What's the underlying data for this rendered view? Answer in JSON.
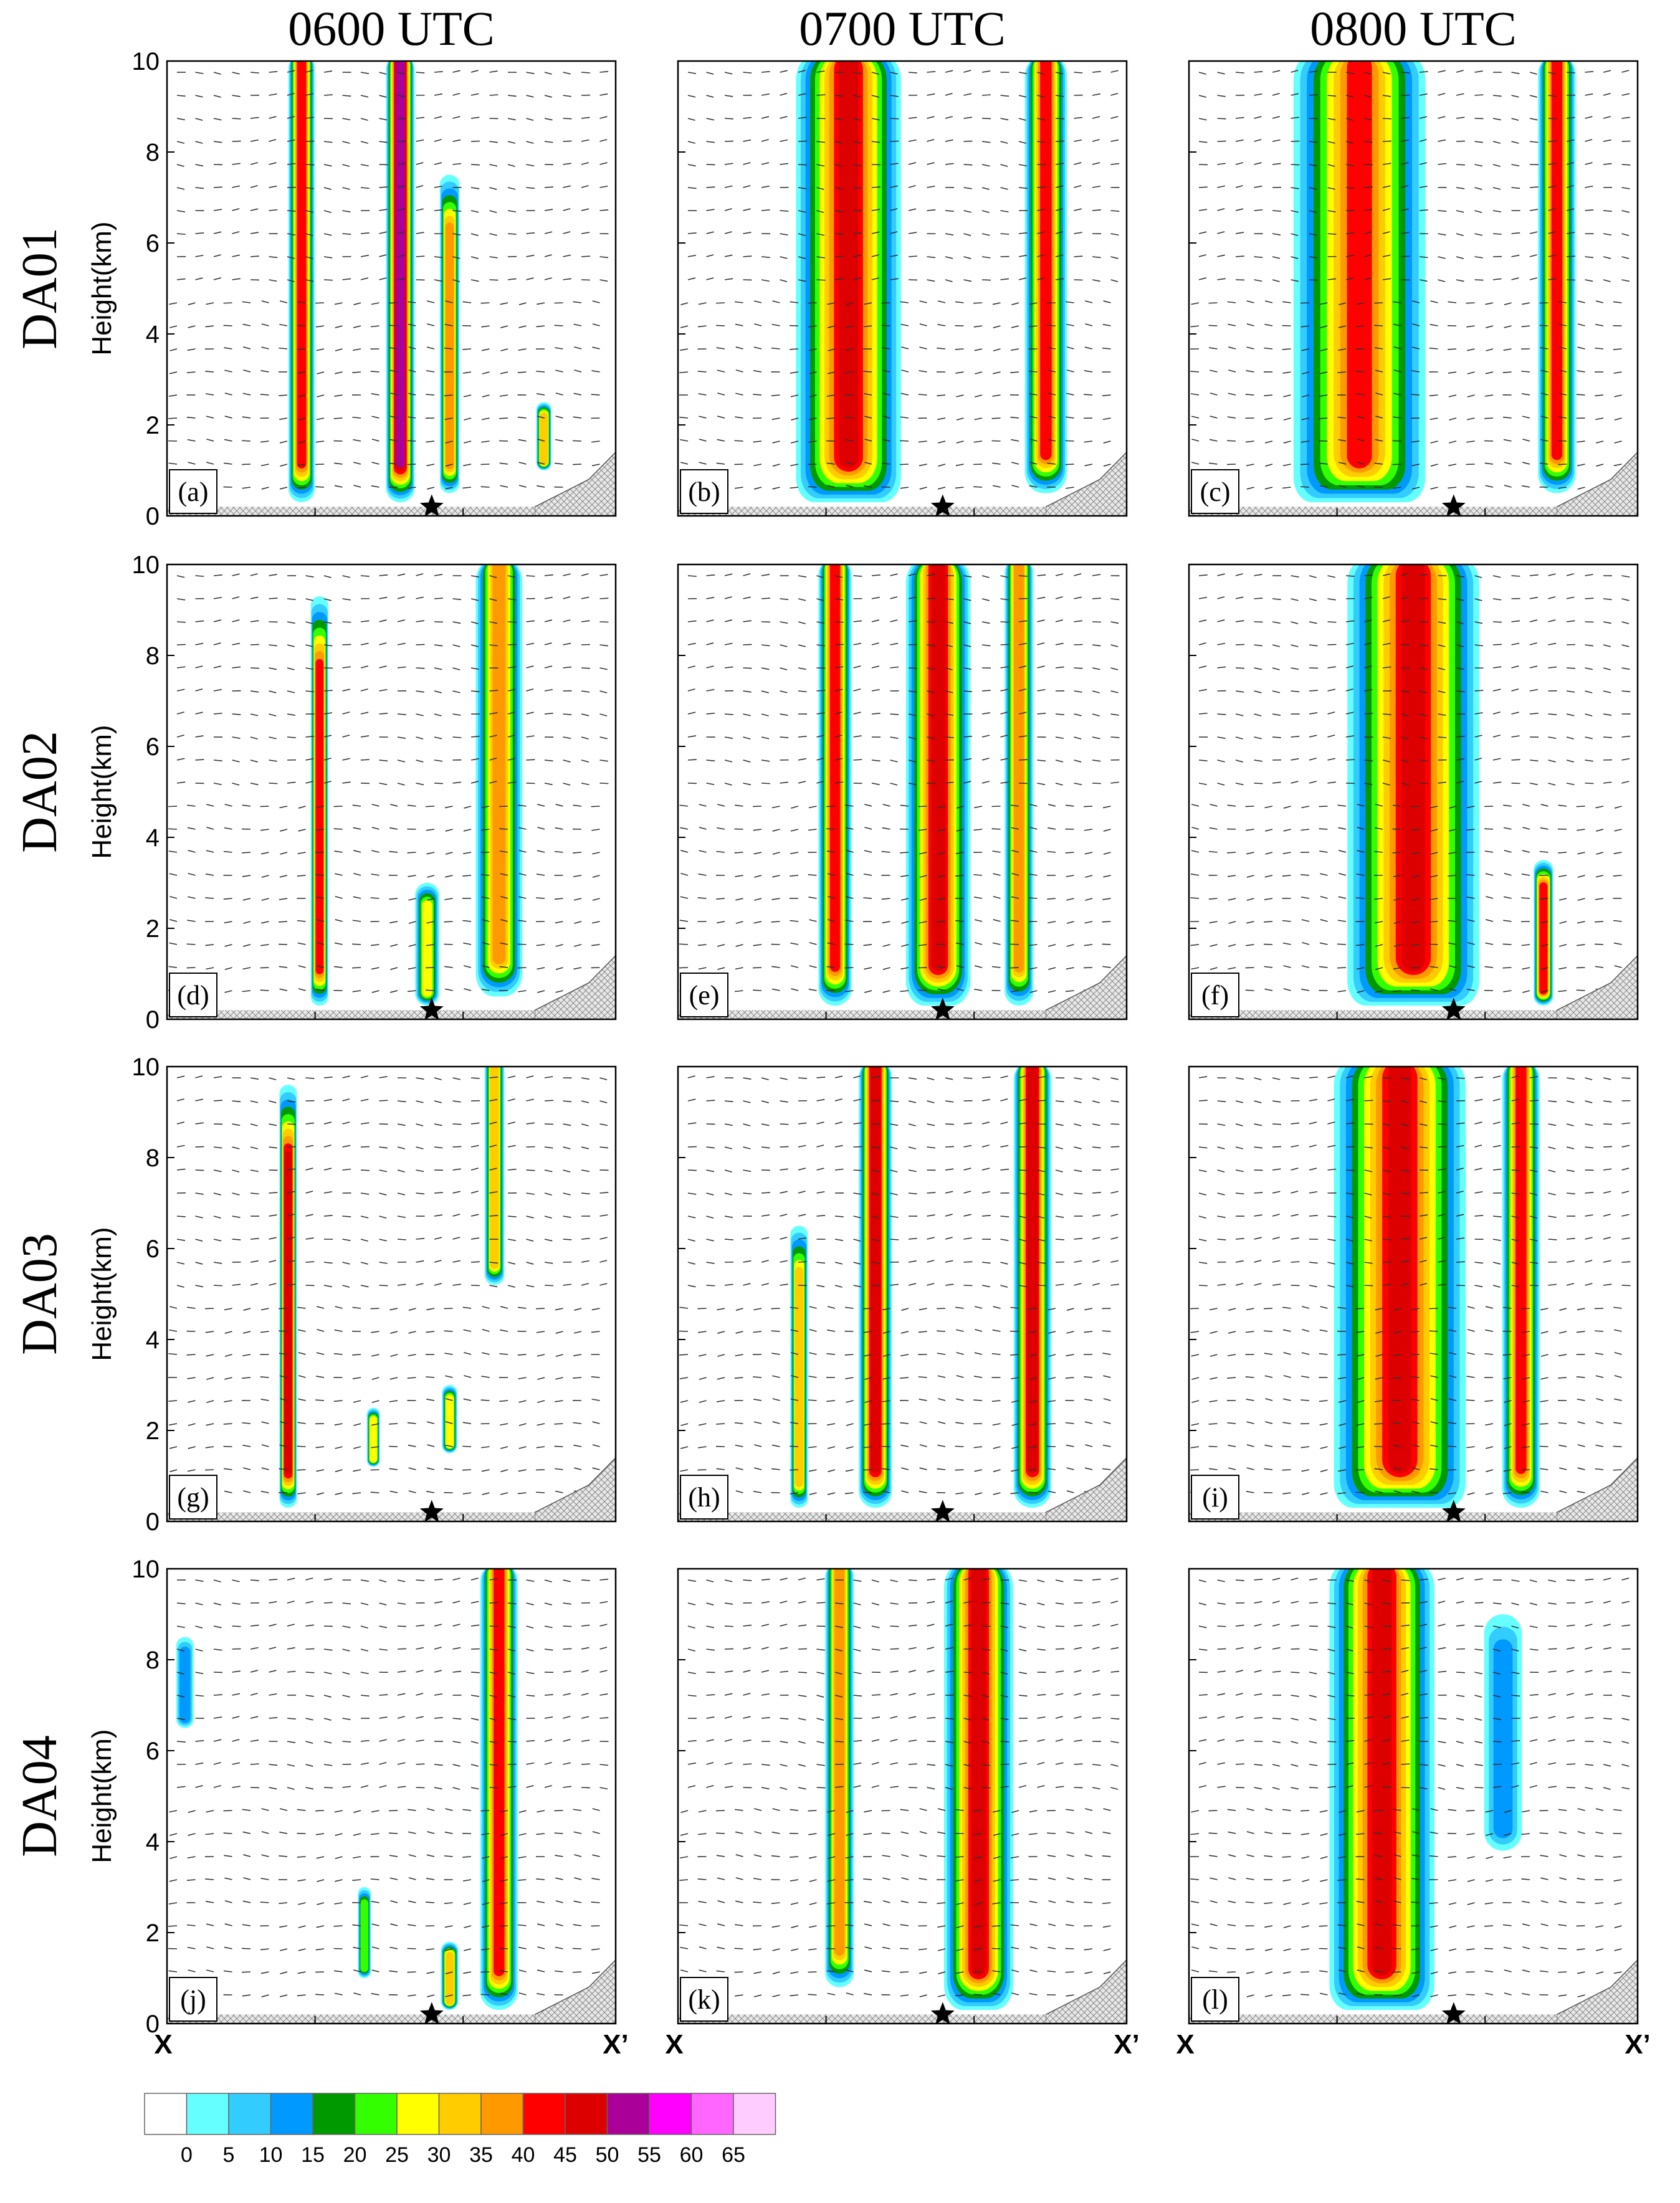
{
  "chart_data": {
    "type": "heatmap",
    "description_type": "vertical cross-sections of radar reflectivity (dBZ) with wind vectors",
    "columns": [
      "0600 UTC",
      "0700 UTC",
      "0800 UTC"
    ],
    "rows": [
      "DA01",
      "DA02",
      "DA03",
      "DA04"
    ],
    "ylabel": "Height(km)",
    "yticks": [
      "0",
      "2",
      "4",
      "6",
      "8",
      "10"
    ],
    "ylim": [
      0,
      10
    ],
    "x_start_label": "X",
    "x_end_label": "X’",
    "star_x_fraction": 0.59,
    "panels": [
      {
        "label": "(a)",
        "row": "DA01",
        "time": "0600 UTC",
        "cores": [
          {
            "x": 0.3,
            "w": 0.045,
            "top": 10,
            "bot": 0.3,
            "peak": 44
          },
          {
            "x": 0.52,
            "w": 0.05,
            "top": 10,
            "bot": 0.3,
            "peak": 50
          },
          {
            "x": 0.63,
            "w": 0.03,
            "top": 7.5,
            "bot": 0.5,
            "peak": 35
          },
          {
            "x": 0.84,
            "w": 0.02,
            "top": 2.5,
            "bot": 1.0,
            "peak": 30
          }
        ]
      },
      {
        "label": "(b)",
        "row": "DA01",
        "time": "0700 UTC",
        "cores": [
          {
            "x": 0.38,
            "w": 0.22,
            "top": 10,
            "bot": 0.3,
            "peak": 45
          },
          {
            "x": 0.82,
            "w": 0.08,
            "top": 10,
            "bot": 0.5,
            "peak": 42
          }
        ]
      },
      {
        "label": "(c)",
        "row": "DA01",
        "time": "0800 UTC",
        "cores": [
          {
            "x": 0.38,
            "w": 0.28,
            "top": 10,
            "bot": 0.3,
            "peak": 42
          },
          {
            "x": 0.82,
            "w": 0.07,
            "top": 10,
            "bot": 0.5,
            "peak": 40
          }
        ]
      },
      {
        "label": "(d)",
        "row": "DA02",
        "time": "0600 UTC",
        "cores": [
          {
            "x": 0.34,
            "w": 0.025,
            "top": 9.3,
            "bot": 0.3,
            "peak": 44
          },
          {
            "x": 0.58,
            "w": 0.04,
            "top": 3.0,
            "bot": 0.3,
            "peak": 25
          },
          {
            "x": 0.74,
            "w": 0.09,
            "top": 10,
            "bot": 0.5,
            "peak": 38
          }
        ]
      },
      {
        "label": "(e)",
        "row": "DA02",
        "time": "0700 UTC",
        "cores": [
          {
            "x": 0.35,
            "w": 0.06,
            "top": 10,
            "bot": 0.3,
            "peak": 44
          },
          {
            "x": 0.58,
            "w": 0.13,
            "top": 10,
            "bot": 0.3,
            "peak": 48
          },
          {
            "x": 0.76,
            "w": 0.05,
            "top": 10,
            "bot": 0.3,
            "peak": 38
          }
        ]
      },
      {
        "label": "(f)",
        "row": "DA02",
        "time": "0800 UTC",
        "cores": [
          {
            "x": 0.5,
            "w": 0.28,
            "top": 10,
            "bot": 0.3,
            "peak": 46
          },
          {
            "x": 0.79,
            "w": 0.03,
            "top": 3.5,
            "bot": 0.3,
            "peak": 40
          }
        ]
      },
      {
        "label": "(g)",
        "row": "DA03",
        "time": "0600 UTC",
        "cores": [
          {
            "x": 0.27,
            "w": 0.025,
            "top": 9.6,
            "bot": 0.3,
            "peak": 46
          },
          {
            "x": 0.46,
            "w": 0.015,
            "top": 2.5,
            "bot": 1.2,
            "peak": 28
          },
          {
            "x": 0.63,
            "w": 0.02,
            "top": 3.0,
            "bot": 1.5,
            "peak": 25
          },
          {
            "x": 0.73,
            "w": 0.03,
            "top": 10,
            "bot": 5.2,
            "peak": 34
          }
        ]
      },
      {
        "label": "(h)",
        "row": "DA03",
        "time": "0700 UTC",
        "cores": [
          {
            "x": 0.27,
            "w": 0.025,
            "top": 6.5,
            "bot": 0.3,
            "peak": 32
          },
          {
            "x": 0.44,
            "w": 0.06,
            "top": 10,
            "bot": 0.3,
            "peak": 45
          },
          {
            "x": 0.79,
            "w": 0.07,
            "top": 10,
            "bot": 0.3,
            "peak": 46
          }
        ]
      },
      {
        "label": "(i)",
        "row": "DA03",
        "time": "0800 UTC",
        "cores": [
          {
            "x": 0.47,
            "w": 0.28,
            "top": 10,
            "bot": 0.3,
            "peak": 46
          },
          {
            "x": 0.74,
            "w": 0.07,
            "top": 10,
            "bot": 0.3,
            "peak": 42
          }
        ]
      },
      {
        "label": "(j)",
        "row": "DA04",
        "time": "0600 UTC",
        "cores": [
          {
            "x": 0.04,
            "w": 0.025,
            "top": 8.5,
            "bot": 6.5,
            "peak": 14
          },
          {
            "x": 0.44,
            "w": 0.015,
            "top": 3.0,
            "bot": 1.0,
            "peak": 22
          },
          {
            "x": 0.63,
            "w": 0.025,
            "top": 1.8,
            "bot": 0.3,
            "peak": 32
          },
          {
            "x": 0.74,
            "w": 0.07,
            "top": 10,
            "bot": 0.3,
            "peak": 42
          }
        ]
      },
      {
        "label": "(k)",
        "row": "DA04",
        "time": "0700 UTC",
        "cores": [
          {
            "x": 0.36,
            "w": 0.05,
            "top": 10,
            "bot": 0.8,
            "peak": 38
          },
          {
            "x": 0.67,
            "w": 0.14,
            "top": 10,
            "bot": 0.3,
            "peak": 46
          }
        ]
      },
      {
        "label": "(l)",
        "row": "DA04",
        "time": "0800 UTC",
        "cores": [
          {
            "x": 0.43,
            "w": 0.22,
            "top": 10,
            "bot": 0.3,
            "peak": 46
          },
          {
            "x": 0.7,
            "w": 0.07,
            "top": 9.0,
            "bot": 3.8,
            "peak": 14
          }
        ]
      }
    ],
    "colorbar": {
      "labels": [
        "0",
        "5",
        "10",
        "15",
        "20",
        "25",
        "30",
        "35",
        "40",
        "45",
        "50",
        "55",
        "60",
        "65"
      ],
      "colors": [
        "#ffffff",
        "#66ffff",
        "#33ccff",
        "#0099ff",
        "#009900",
        "#33ff00",
        "#ffff00",
        "#ffcc00",
        "#ff9900",
        "#ff0000",
        "#dd0000",
        "#aa0099",
        "#ff00ff",
        "#ff66ff",
        "#ffccff"
      ]
    }
  }
}
